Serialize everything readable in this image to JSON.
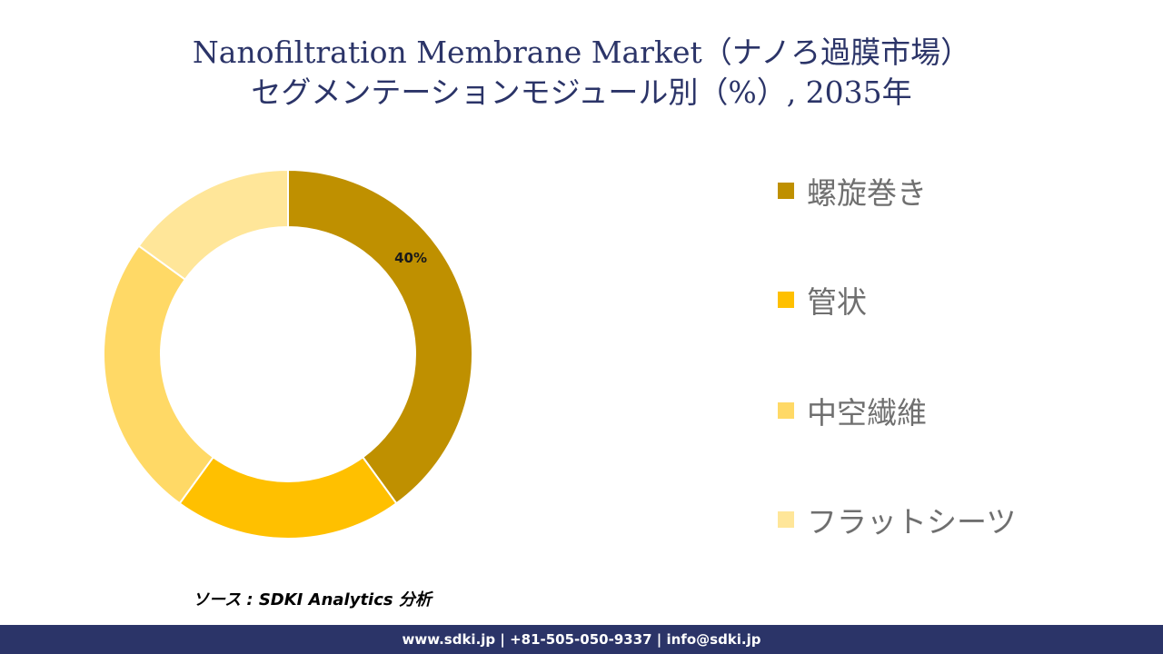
{
  "title": {
    "line1": "Nanofiltration Membrane Market（ナノろ過膜市場）",
    "line2": "セグメンテーションモジュール別（%）, 2035年"
  },
  "chart_data": {
    "type": "pie",
    "donut": true,
    "categories": [
      "螺旋巻き",
      "管状",
      "中空繊維",
      "フラットシーツ"
    ],
    "values": [
      40,
      20,
      25,
      15
    ],
    "colors": [
      "#bf9000",
      "#ffc000",
      "#ffd966",
      "#ffe699"
    ],
    "data_labels": [
      "40%",
      "",
      "",
      ""
    ],
    "legend_position": "right"
  },
  "source": "ソース : SDKI Analytics 分析",
  "footer": "www.sdki.jp | +81-505-050-9337 | info@sdki.jp"
}
